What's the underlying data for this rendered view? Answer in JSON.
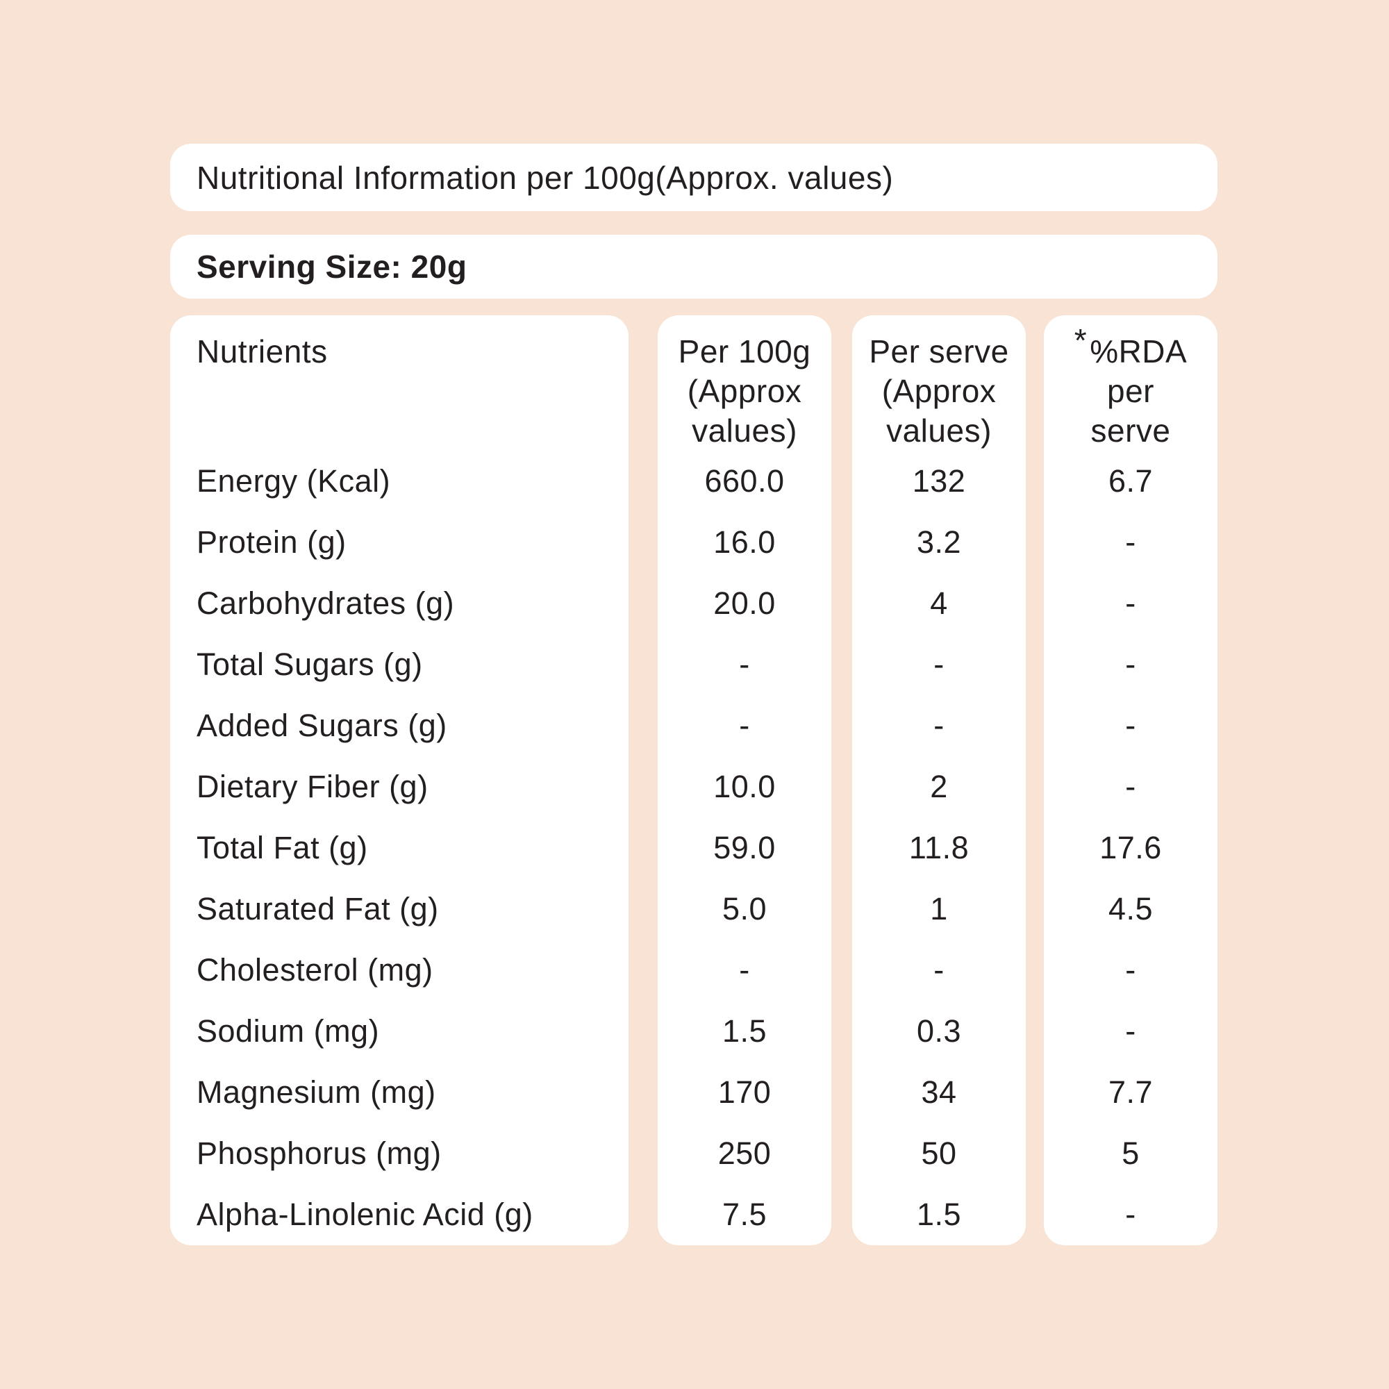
{
  "colors": {
    "background": "#f8e3d4",
    "card": "#ffffff",
    "text": "#231f20"
  },
  "title_bar": {
    "text": "Nutritional Information per 100g(Approx. values)"
  },
  "serving_bar": {
    "text": "Serving Size: 20g"
  },
  "table": {
    "nutrients_header": "Nutrients",
    "columns": {
      "per100g": {
        "lines": [
          "Per 100g",
          "(Approx",
          "values)"
        ]
      },
      "per_serve": {
        "lines": [
          "Per serve",
          "(Approx",
          "values)"
        ]
      },
      "rda": {
        "asterisk": "*",
        "lines": [
          "%RDA",
          "per",
          "serve"
        ]
      }
    },
    "rows": [
      {
        "nutrient": "Energy (Kcal)",
        "per100g": "660.0",
        "per_serve": "132",
        "rda": "6.7"
      },
      {
        "nutrient": "Protein (g)",
        "per100g": "16.0",
        "per_serve": "3.2",
        "rda": "-"
      },
      {
        "nutrient": "Carbohydrates (g)",
        "per100g": "20.0",
        "per_serve": "4",
        "rda": "-"
      },
      {
        "nutrient": "Total Sugars (g)",
        "per100g": "-",
        "per_serve": "-",
        "rda": "-"
      },
      {
        "nutrient": "Added Sugars (g)",
        "per100g": "-",
        "per_serve": "-",
        "rda": "-"
      },
      {
        "nutrient": "Dietary Fiber (g)",
        "per100g": "10.0",
        "per_serve": "2",
        "rda": "-"
      },
      {
        "nutrient": "Total Fat (g)",
        "per100g": "59.0",
        "per_serve": "11.8",
        "rda": "17.6"
      },
      {
        "nutrient": "Saturated Fat (g)",
        "per100g": "5.0",
        "per_serve": "1",
        "rda": "4.5"
      },
      {
        "nutrient": "Cholesterol (mg)",
        "per100g": "-",
        "per_serve": "-",
        "rda": "-"
      },
      {
        "nutrient": "Sodium (mg)",
        "per100g": "1.5",
        "per_serve": "0.3",
        "rda": "-"
      },
      {
        "nutrient": "Magnesium (mg)",
        "per100g": "170",
        "per_serve": "34",
        "rda": "7.7"
      },
      {
        "nutrient": "Phosphorus (mg)",
        "per100g": "250",
        "per_serve": "50",
        "rda": "5"
      },
      {
        "nutrient": "Alpha-Linolenic Acid (g)",
        "per100g": "7.5",
        "per_serve": "1.5",
        "rda": "-"
      }
    ]
  }
}
